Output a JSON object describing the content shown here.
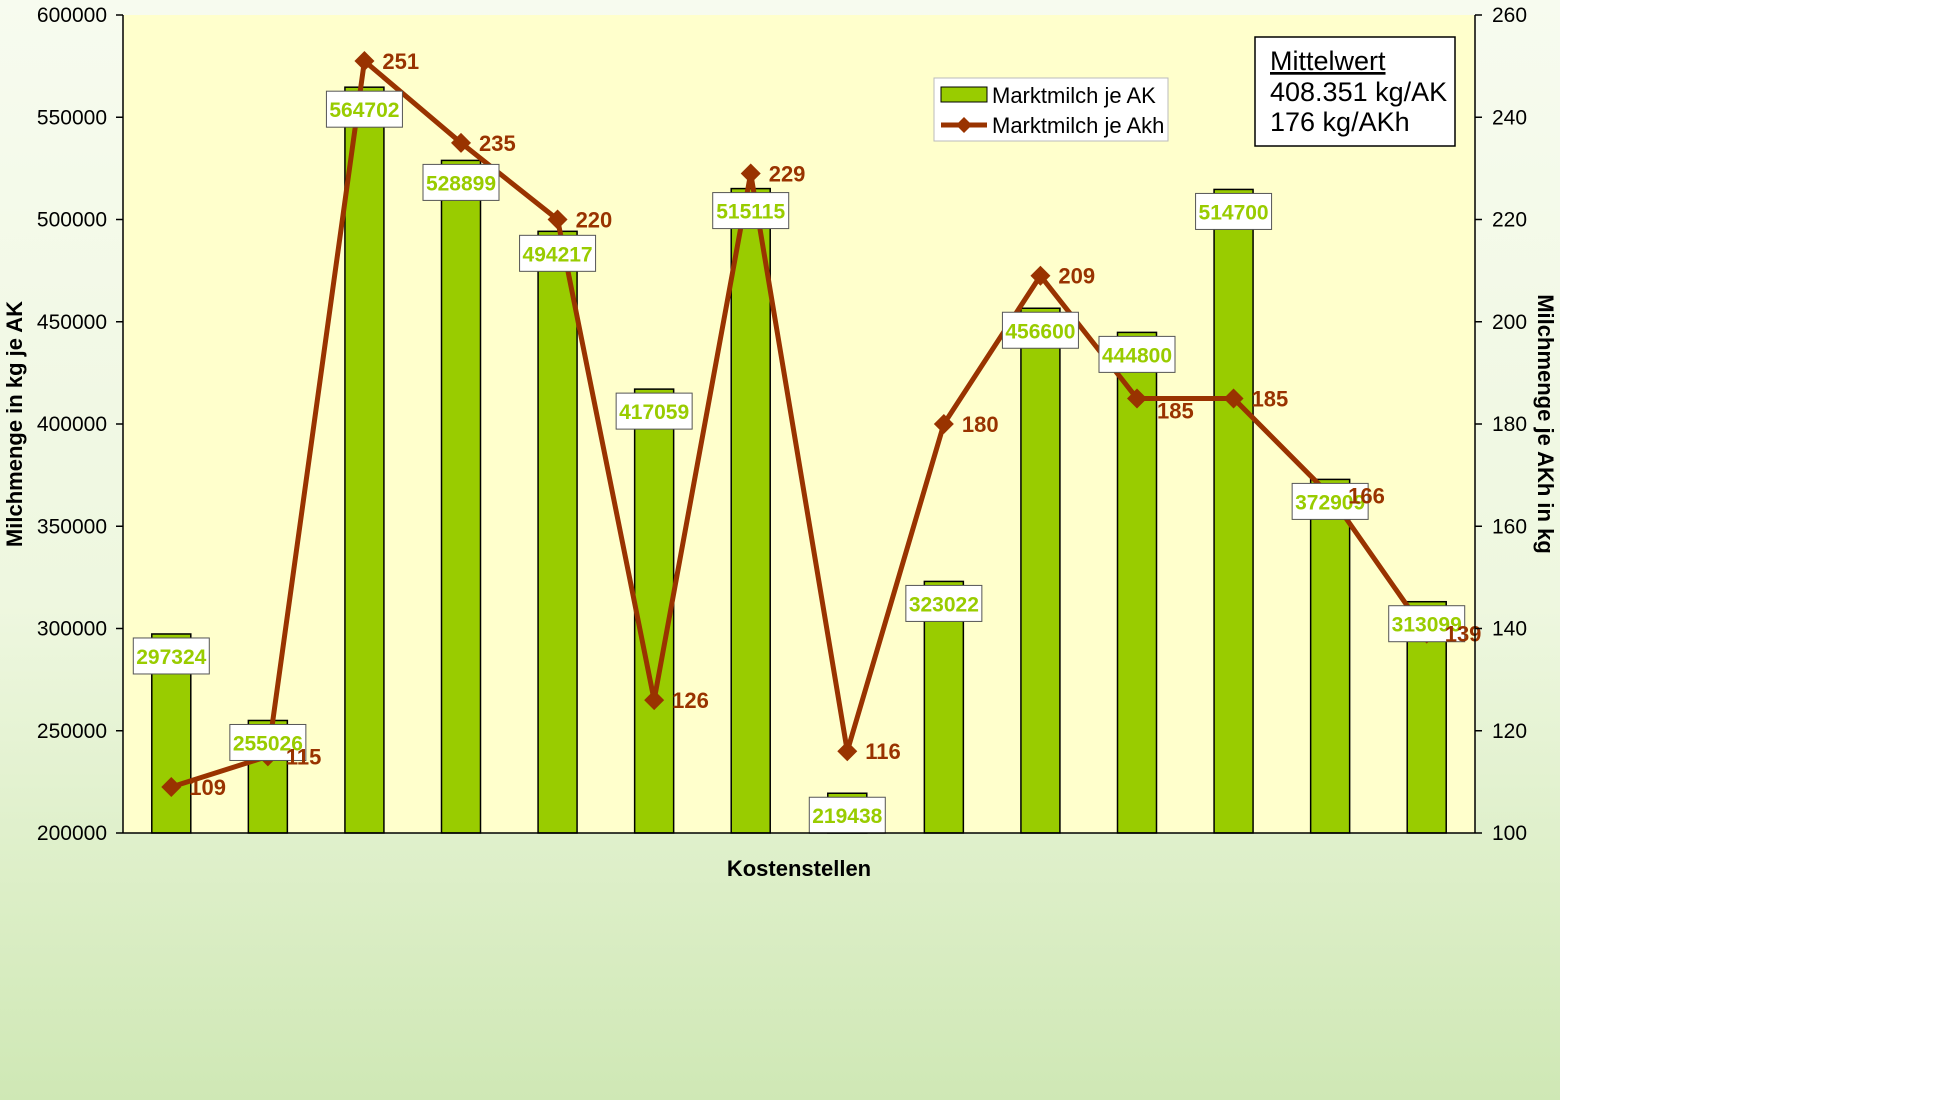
{
  "chart_data": {
    "type": "bar",
    "xlabel": "Kostenstellen",
    "ylabel_left": "Milchmenge in kg je AK",
    "ylabel_right": "Milchmenge je AKh in kg",
    "ylim_left": [
      200000,
      600000
    ],
    "yticks_left": [
      200000,
      250000,
      300000,
      350000,
      400000,
      450000,
      500000,
      550000,
      600000
    ],
    "ylim_right": [
      100,
      260
    ],
    "yticks_right": [
      100,
      120,
      140,
      160,
      180,
      200,
      220,
      240,
      260
    ],
    "grid": false,
    "legend_position": "top-right",
    "series": [
      {
        "name": "Marktmilch je AK",
        "type": "bar",
        "axis": "left",
        "color": "#99cc00",
        "values": [
          297324,
          255026,
          564702,
          528899,
          494217,
          417059,
          515115,
          219438,
          323022,
          456600,
          444800,
          514700,
          372909,
          313099
        ]
      },
      {
        "name": "Marktmilch je Akh",
        "type": "line",
        "axis": "right",
        "color": "#993300",
        "values": [
          109,
          115,
          251,
          235,
          220,
          126,
          229,
          116,
          180,
          209,
          185,
          185,
          166,
          139
        ]
      }
    ],
    "annotation": {
      "title": "Mittelwert",
      "lines": [
        "408.351 kg/AK",
        "176 kg/AKh"
      ]
    }
  },
  "colors": {
    "plot_background": "#ffffcc",
    "bar_fill": "#99cc00",
    "line": "#993300"
  }
}
